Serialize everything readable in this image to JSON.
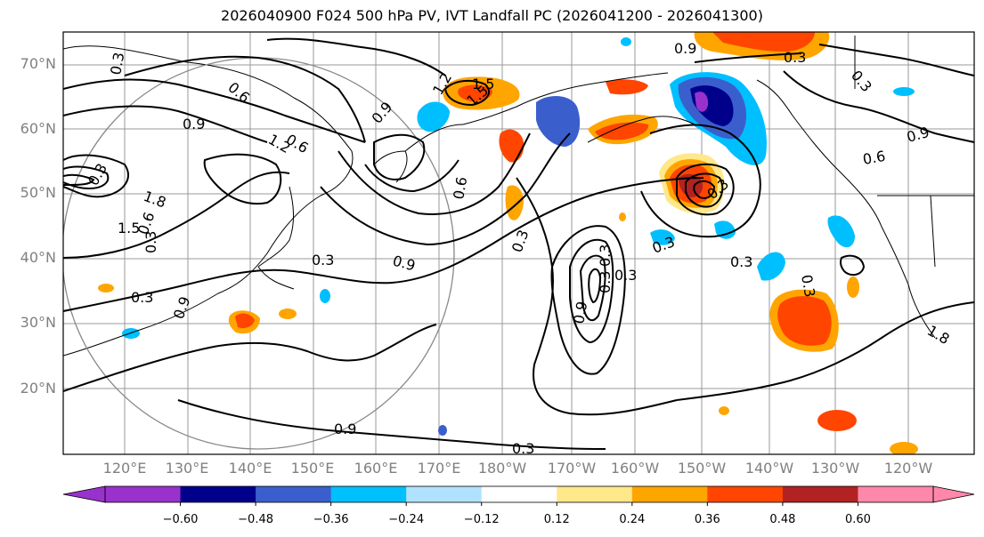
{
  "title": "2026040900 F024 500 hPa PV, IVT Landfall PC (2026041200 - 2026041300)",
  "lat_labels": [
    "70°N",
    "60°N",
    "50°N",
    "40°N",
    "30°N",
    "20°N"
  ],
  "lon_labels": [
    "120°E",
    "130°E",
    "140°E",
    "150°E",
    "160°E",
    "170°E",
    "180°W",
    "170°W",
    "160°W",
    "150°W",
    "140°W",
    "130°W",
    "120°W"
  ],
  "colorbar": {
    "ticks": [
      "−0.60",
      "−0.48",
      "−0.36",
      "−0.24",
      "−0.12",
      "0.12",
      "0.24",
      "0.36",
      "0.48",
      "0.60"
    ],
    "colors": [
      "#9932CC",
      "#00008B",
      "#3A5FCD",
      "#00BFFF",
      "#B0E2FF",
      "#FFFFFF",
      "#FFE78A",
      "#FFA500",
      "#FF4500",
      "#B22222",
      "#FF88AA"
    ]
  },
  "contour_labels": [
    "0.3",
    "0.6",
    "0.9",
    "1.2",
    "1.5",
    "1.8"
  ],
  "contour_values": [
    "0.3",
    "0.9",
    "0.6",
    "1.2",
    "1.5",
    "1.8",
    "0.3",
    "0.9",
    "0.6",
    "0.3",
    "0.9",
    "0.6",
    "0.9",
    "0.3",
    "0.3",
    "0.6",
    "0.9",
    "1.8",
    "0.3",
    "0.3",
    "0.3",
    "0.3",
    "0.9",
    "0.3",
    "1.5",
    "1.2",
    "0.9",
    "1.5",
    "0.9",
    "0.3",
    "0.3",
    "0.3",
    "0.3",
    "0.3",
    "0.3",
    "0.6"
  ]
}
